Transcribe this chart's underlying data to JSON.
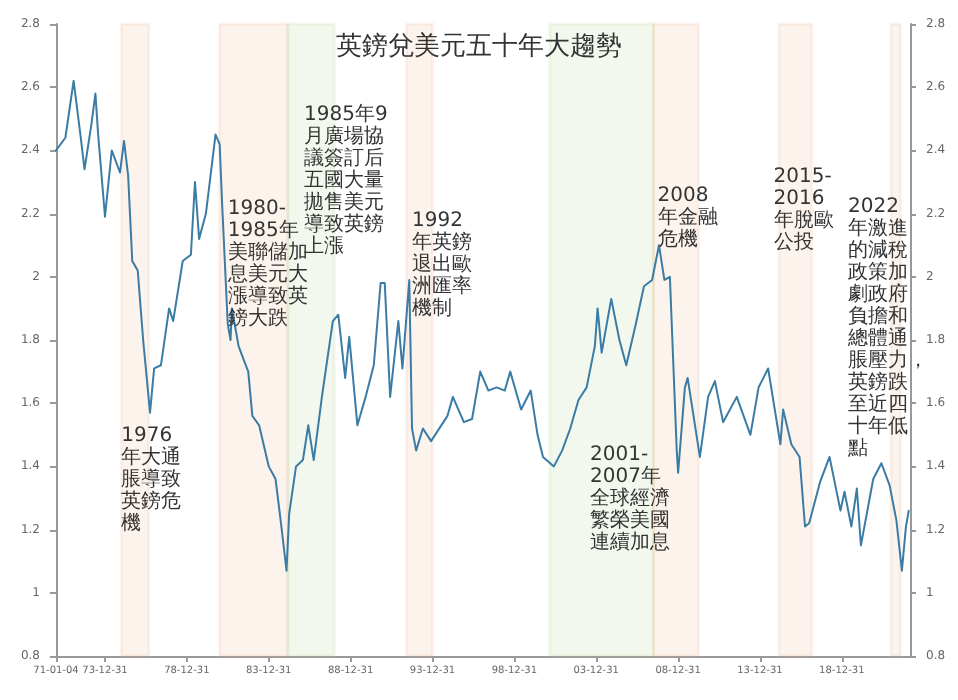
{
  "chart_data": {
    "type": "line",
    "title": "英鎊兌美元五十年大趨勢",
    "x": [
      "1971-01-04",
      "1971-08",
      "1972-02",
      "1972-07",
      "1972-10",
      "1973-03",
      "1973-06",
      "1973-08",
      "1974-01",
      "1974-06",
      "1974-12",
      "1975-03",
      "1975-06",
      "1975-09",
      "1976-01",
      "1976-05",
      "1976-10",
      "1977-01",
      "1977-06",
      "1977-12",
      "1978-03",
      "1978-10",
      "1979-04",
      "1979-07",
      "1979-10",
      "1980-03",
      "1980-10",
      "1981-01",
      "1981-03",
      "1981-07",
      "1981-09",
      "1981-10",
      "1982-03",
      "1982-10",
      "1983-01",
      "1983-06",
      "1984-01",
      "1984-06",
      "1984-10",
      "1985-02",
      "1985-04",
      "1985-09",
      "1986-02",
      "1986-06",
      "1986-10",
      "1987-04",
      "1987-12",
      "1988-04",
      "1988-09",
      "1988-12",
      "1989-06",
      "1989-12",
      "1990-06",
      "1990-11",
      "1991-02",
      "1991-06",
      "1991-12",
      "1992-03",
      "1992-08",
      "1992-10",
      "1993-01",
      "1993-06",
      "1993-12",
      "1994-12",
      "1995-04",
      "1995-12",
      "1996-06",
      "1996-12",
      "1997-06",
      "1997-12",
      "1998-06",
      "1998-10",
      "1999-06",
      "2000-01",
      "2000-06",
      "2000-10",
      "2001-06",
      "2001-12",
      "2002-06",
      "2002-12",
      "2003-06",
      "2003-12",
      "2004-02",
      "2004-05",
      "2004-12",
      "2005-06",
      "2005-11",
      "2006-06",
      "2006-12",
      "2007-06",
      "2007-11",
      "2008-03",
      "2008-07",
      "2008-12",
      "2009-01",
      "2009-06",
      "2009-08",
      "2010-05",
      "2010-11",
      "2011-04",
      "2011-10",
      "2012-08",
      "2013-06",
      "2013-12",
      "2014-07",
      "2015-04",
      "2015-06",
      "2015-12",
      "2016-06",
      "2016-10",
      "2017-01",
      "2017-09",
      "2018-04",
      "2018-12",
      "2019-03",
      "2019-08",
      "2019-12",
      "2020-03",
      "2020-12",
      "2021-06",
      "2021-12",
      "2022-05",
      "2022-09",
      "2022-12",
      "2023-02"
    ],
    "series": [
      {
        "color": "#3a7ca5",
        "values": [
          2.4,
          2.44,
          2.62,
          2.45,
          2.34,
          2.48,
          2.58,
          2.45,
          2.19,
          2.4,
          2.33,
          2.43,
          2.32,
          2.05,
          2.02,
          1.8,
          1.57,
          1.71,
          1.72,
          1.9,
          1.86,
          2.05,
          2.07,
          2.3,
          2.12,
          2.2,
          2.45,
          2.42,
          2.22,
          1.85,
          1.8,
          1.9,
          1.78,
          1.7,
          1.56,
          1.53,
          1.4,
          1.36,
          1.22,
          1.07,
          1.25,
          1.4,
          1.42,
          1.53,
          1.42,
          1.62,
          1.86,
          1.88,
          1.68,
          1.81,
          1.53,
          1.62,
          1.72,
          1.98,
          1.98,
          1.62,
          1.86,
          1.71,
          1.99,
          1.52,
          1.45,
          1.52,
          1.48,
          1.56,
          1.62,
          1.54,
          1.55,
          1.7,
          1.64,
          1.65,
          1.64,
          1.7,
          1.58,
          1.64,
          1.5,
          1.43,
          1.4,
          1.45,
          1.52,
          1.61,
          1.65,
          1.78,
          1.9,
          1.76,
          1.93,
          1.8,
          1.72,
          1.85,
          1.97,
          1.99,
          2.1,
          1.99,
          2.0,
          1.45,
          1.38,
          1.65,
          1.68,
          1.43,
          1.62,
          1.67,
          1.54,
          1.62,
          1.5,
          1.65,
          1.71,
          1.47,
          1.58,
          1.47,
          1.43,
          1.21,
          1.22,
          1.35,
          1.43,
          1.26,
          1.32,
          1.21,
          1.33,
          1.15,
          1.36,
          1.41,
          1.34,
          1.23,
          1.07,
          1.21,
          1.26
        ]
      }
    ],
    "xlim": [
      "1971-01-04",
      "2023-03"
    ],
    "xticks": [
      {
        "value": "1971-01-04",
        "label": "71-01-04"
      },
      {
        "value": "1973-12-31",
        "label": "73-12-31"
      },
      {
        "value": "1978-12-31",
        "label": "78-12-31"
      },
      {
        "value": "1983-12-31",
        "label": "83-12-31"
      },
      {
        "value": "1988-12-31",
        "label": "88-12-31"
      },
      {
        "value": "1993-12-31",
        "label": "93-12-31"
      },
      {
        "value": "1998-12-31",
        "label": "98-12-31"
      },
      {
        "value": "2003-12-31",
        "label": "03-12-31"
      },
      {
        "value": "2008-12-31",
        "label": "08-12-31"
      },
      {
        "value": "2013-12-31",
        "label": "13-12-31"
      },
      {
        "value": "2018-12-31",
        "label": "18-12-31"
      }
    ],
    "ylim": [
      0.8,
      2.8
    ],
    "yticks": [
      0.8,
      1,
      1.2,
      1.4,
      1.6,
      1.8,
      2,
      2.2,
      2.4,
      2.6,
      2.8
    ],
    "y2lim": [
      0.8,
      2.8
    ],
    "y2ticks": [
      0.8,
      1,
      1.2,
      1.4,
      1.6,
      1.8,
      2,
      2.2,
      2.4,
      2.6,
      2.8
    ],
    "marker": "none",
    "line_style": "solid",
    "bands": [
      {
        "axis": "x",
        "from": "1975-01",
        "to": "1976-09",
        "color": "#f4b183"
      },
      {
        "axis": "x",
        "from": "1981-01",
        "to": "1985-03",
        "color": "#f4b183"
      },
      {
        "axis": "x",
        "from": "1985-03",
        "to": "1988-01",
        "color": "#a9d18e"
      },
      {
        "axis": "x",
        "from": "1992-06",
        "to": "1994-01",
        "color": "#f4b183"
      },
      {
        "axis": "x",
        "from": "2001-03",
        "to": "2007-07",
        "color": "#a9d18e"
      },
      {
        "axis": "x",
        "from": "2007-07",
        "to": "2010-04",
        "color": "#f4b183"
      },
      {
        "axis": "x",
        "from": "2015-03",
        "to": "2017-03",
        "color": "#f4b183"
      },
      {
        "axis": "x",
        "from": "2022-01",
        "to": "2022-08",
        "color": "#f4b183"
      }
    ],
    "annotations": [
      {
        "text": "1976年大通脹導致英鎊危機",
        "x": "1975-01",
        "y": 1.53
      },
      {
        "text": "1980-1985年美聯儲加息美元大漲導致英鎊大跌",
        "x": "1981-07",
        "y": 2.25
      },
      "1985年9月廣場協議簽訂后五國大量拋售美元導致英鎊上漲",
      {
        "text": "1992年英鎊退出歐洲匯率機制",
        "x": "1992-10",
        "y": 2.21
      },
      "2001-2007年全球經濟繁榮美國連續加息",
      {
        "text": "2008年金融危機",
        "x": "2007-10",
        "y": 2.29
      },
      {
        "text": "2015-2016年脫歐公投",
        "x": "2014-11",
        "y": 2.35
      },
      "2022年激進的減稅政策加劇政府負擔和總體通脹壓力，英鎊跌至近四十年低點"
    ]
  }
}
